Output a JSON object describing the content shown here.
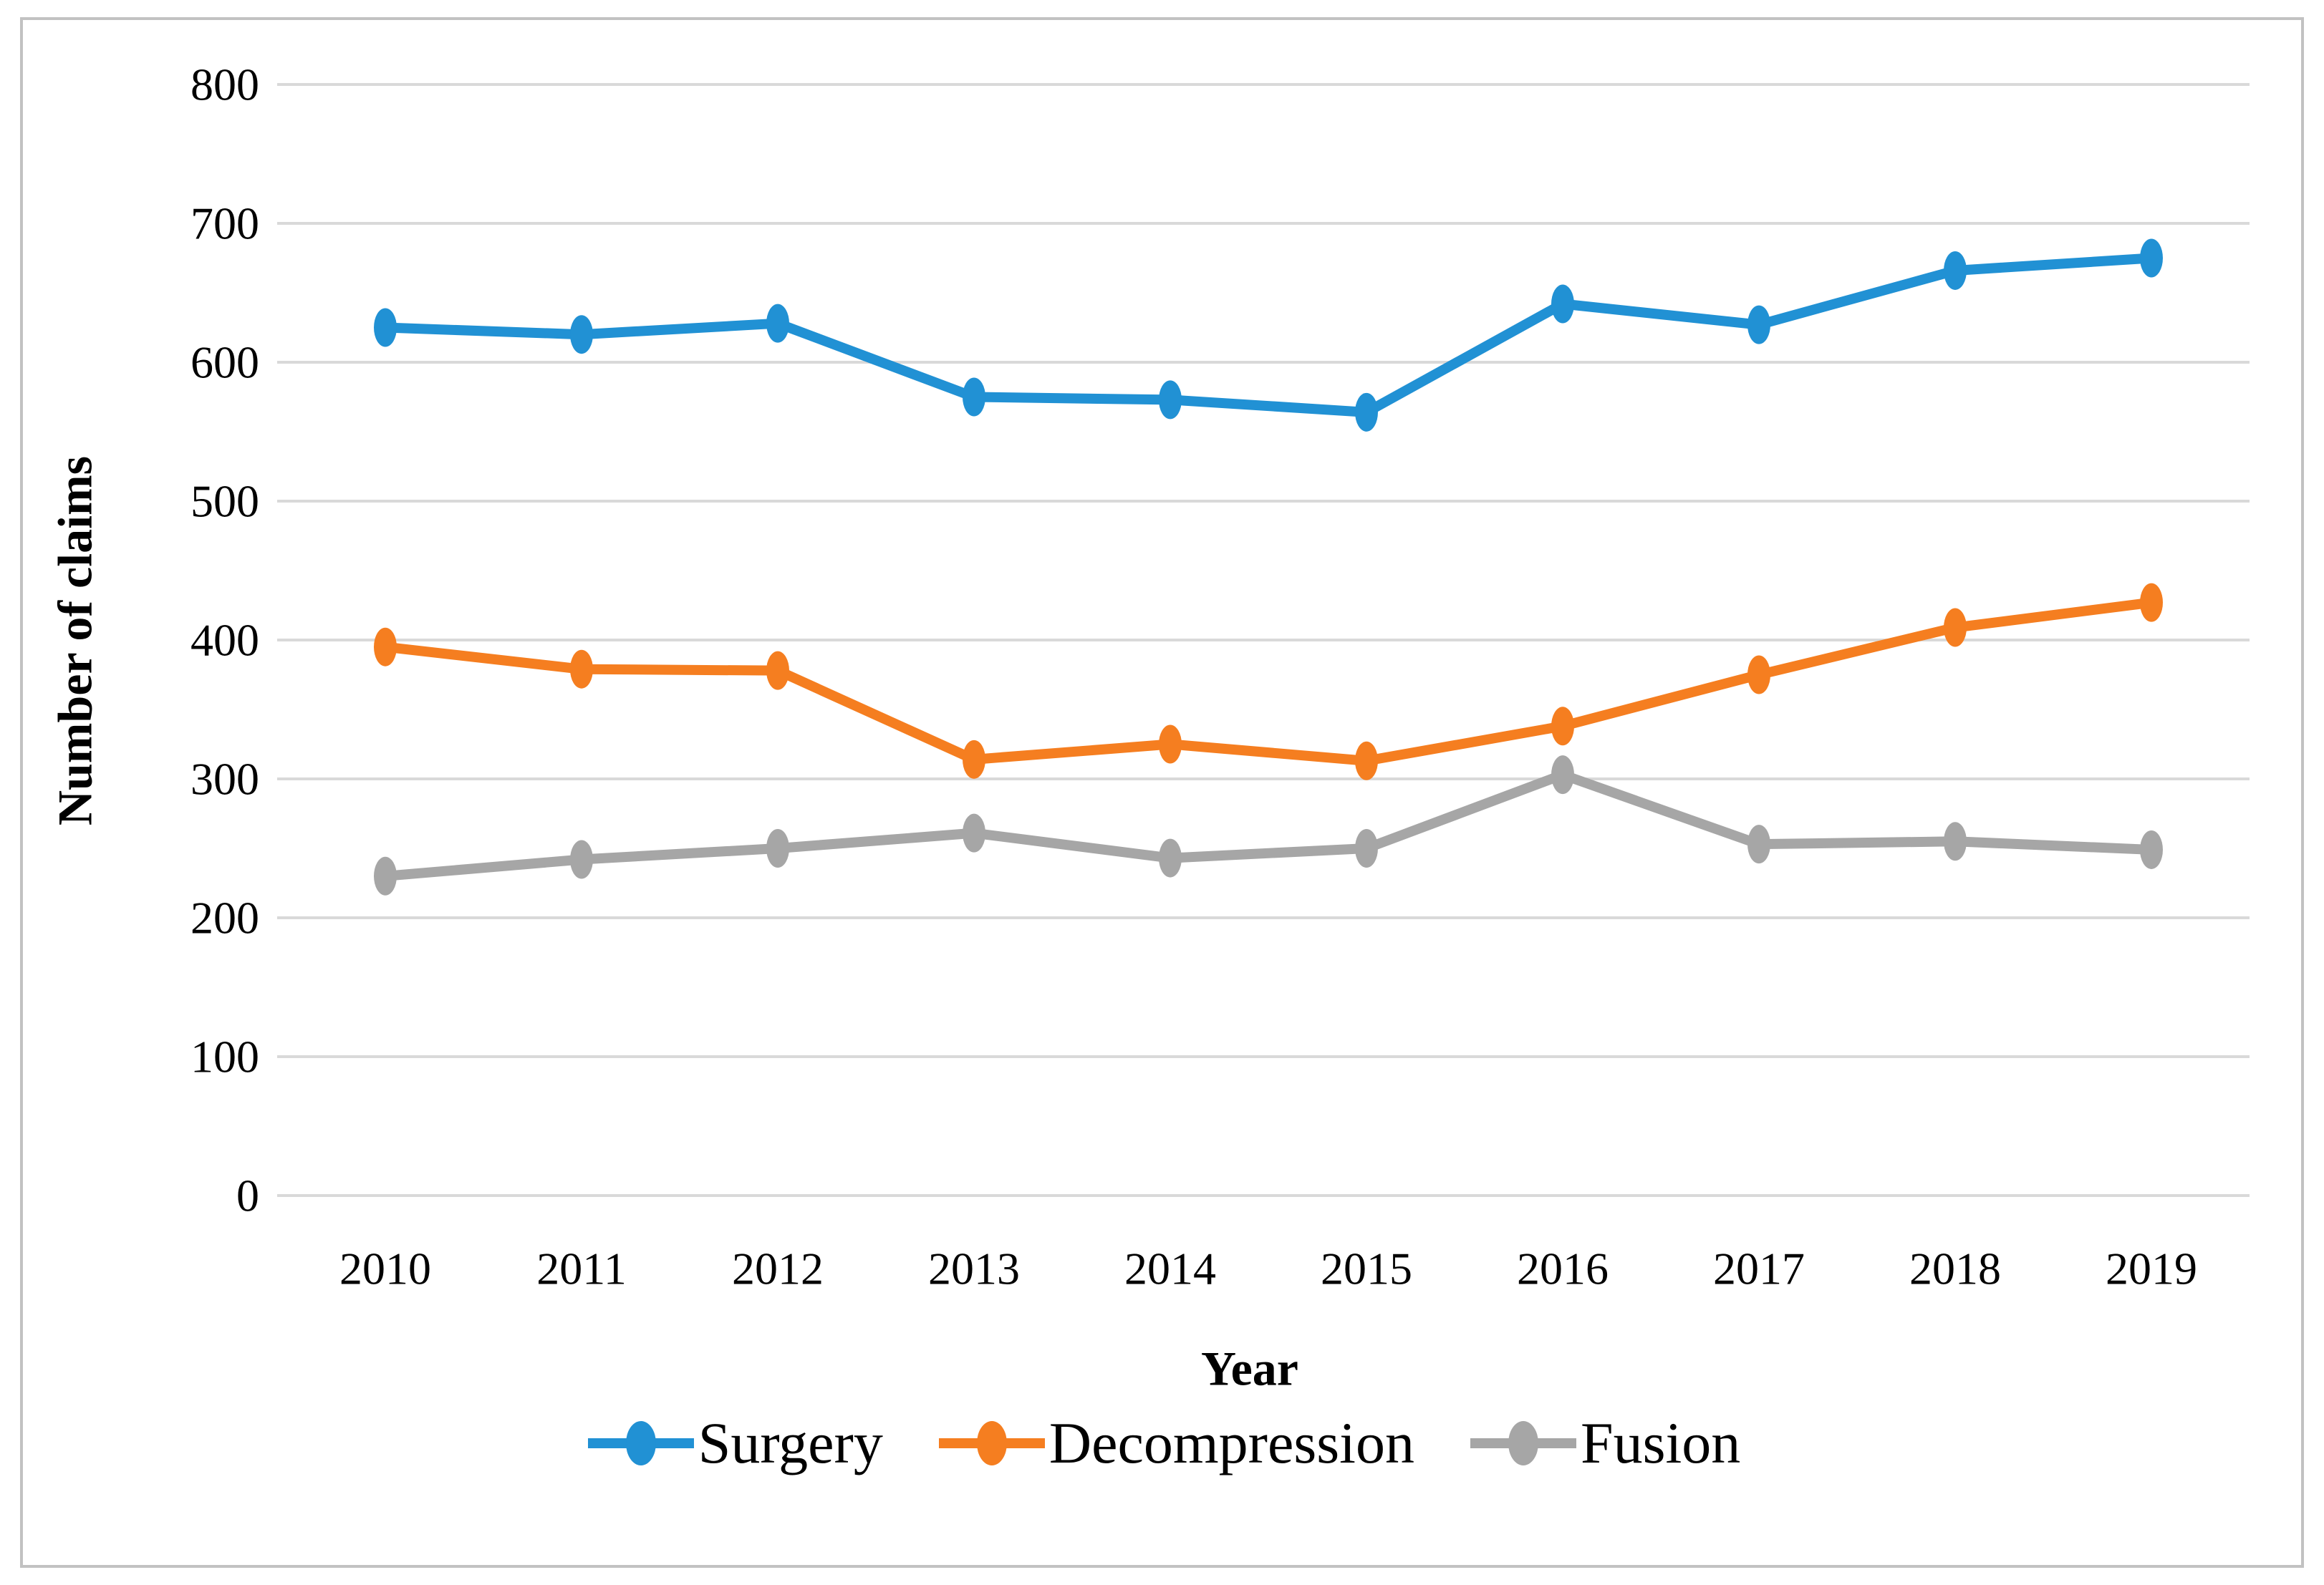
{
  "figure": {
    "border_color": "#c2c2c2",
    "background": "#ffffff"
  },
  "axes": {
    "y_tick_labels": [
      "800",
      "700",
      "600",
      "500",
      "400",
      "300",
      "200",
      "100",
      "0"
    ],
    "gridline_color": "#d9d9d9",
    "tick_color": "#d9d9d9",
    "text_color": "#000000"
  },
  "chart_data": {
    "type": "line",
    "title": "",
    "xlabel": "Year",
    "ylabel": "Number of claims",
    "x": [
      "2010",
      "2011",
      "2012",
      "2013",
      "2014",
      "2015",
      "2016",
      "2017",
      "2018",
      "2019"
    ],
    "ylim": [
      0,
      800
    ],
    "ytick_step": 100,
    "grid": true,
    "legend_position": "bottom",
    "series": [
      {
        "name": "Surgery",
        "color": "#2191d4",
        "values": [
          625,
          620,
          628,
          575,
          573,
          564,
          642,
          627,
          666,
          675
        ]
      },
      {
        "name": "Decompression",
        "color": "#f57e20",
        "values": [
          395,
          379,
          378,
          314,
          325,
          313,
          338,
          375,
          409,
          427
        ]
      },
      {
        "name": "Fusion",
        "color": "#a6a6a6",
        "values": [
          230,
          242,
          250,
          261,
          243,
          250,
          303,
          253,
          255,
          249
        ]
      }
    ]
  }
}
